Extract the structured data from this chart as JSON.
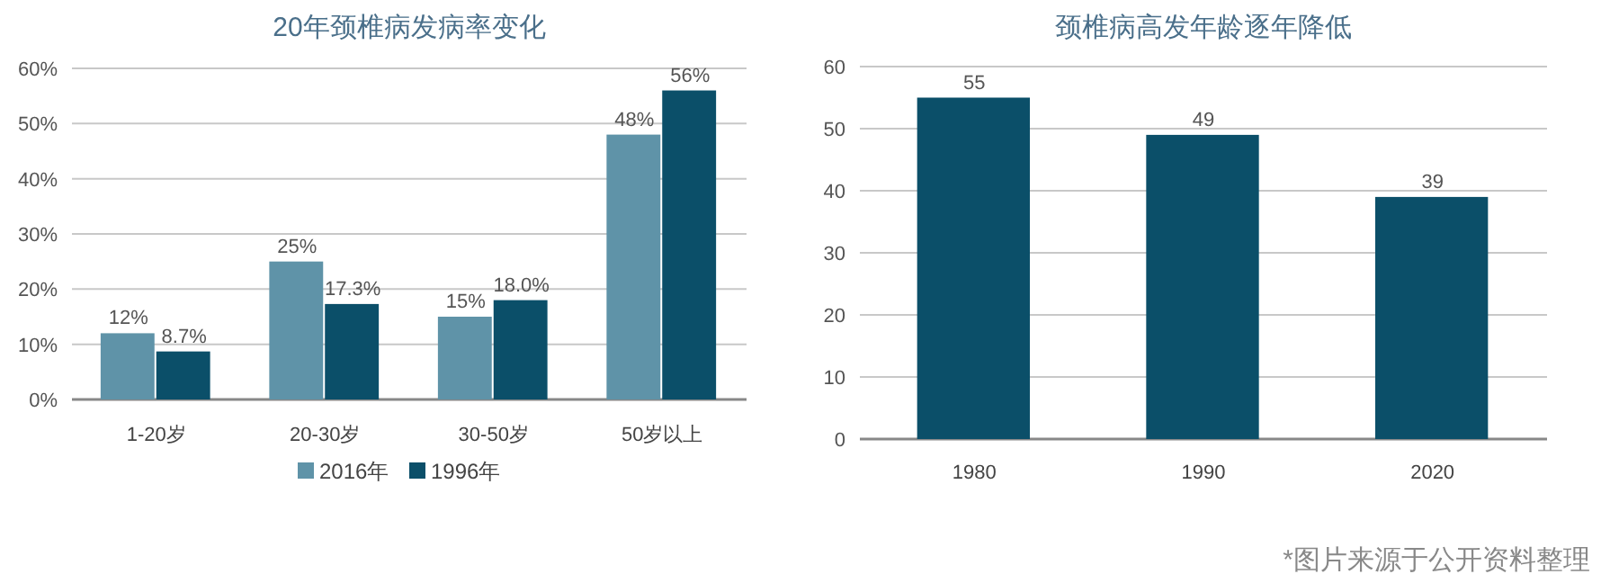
{
  "chart_data": [
    {
      "type": "bar",
      "title": "20年颈椎病发病率变化",
      "categories": [
        "1-20岁",
        "20-30岁",
        "30-50岁",
        "50岁以上"
      ],
      "series": [
        {
          "name": "2016年",
          "color": "#5f93a8",
          "values": [
            12,
            25,
            15,
            48
          ],
          "value_labels": [
            "12%",
            "25%",
            "15%",
            "48%"
          ]
        },
        {
          "name": "1996年",
          "color": "#0b4f69",
          "values": [
            8.7,
            17.3,
            18.0,
            56
          ],
          "value_labels": [
            "8.7%",
            "17.3%",
            "18.0%",
            "56%"
          ]
        }
      ],
      "ylim": [
        0,
        60
      ],
      "yticks": [
        {
          "value": 0,
          "label": "0%"
        },
        {
          "value": 10,
          "label": "10%"
        },
        {
          "value": 20,
          "label": "20%"
        },
        {
          "value": 30,
          "label": "30%"
        },
        {
          "value": 40,
          "label": "40%"
        },
        {
          "value": 50,
          "label": "50%"
        },
        {
          "value": 60,
          "label": "60%"
        }
      ],
      "grid": "y",
      "legend": "bottom"
    },
    {
      "type": "bar",
      "title": "颈椎病高发年龄逐年降低",
      "categories": [
        "1980",
        "1990",
        "2020"
      ],
      "series": [
        {
          "color": "#0b4f69",
          "values": [
            55,
            49,
            39
          ]
        }
      ],
      "ylim": [
        0,
        60
      ],
      "yticks": [
        0,
        10,
        20,
        30,
        40,
        50,
        60
      ],
      "grid": "y",
      "data_labels": true,
      "annotations": [
        "*图片来源于公开资料整理"
      ]
    }
  ]
}
